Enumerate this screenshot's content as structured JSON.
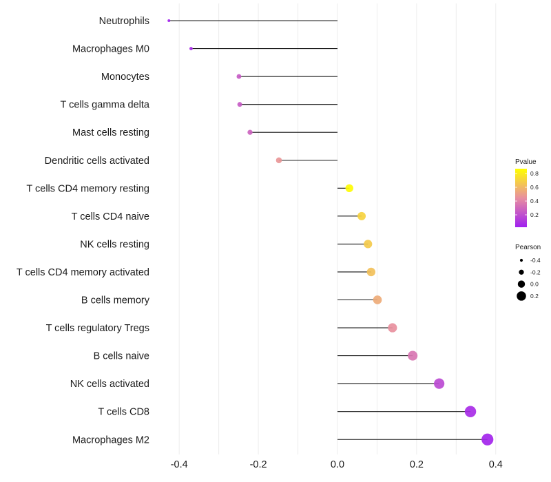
{
  "chart_data": {
    "type": "lollipop",
    "title": "",
    "xlabel": "",
    "ylabel": "",
    "xlim": [
      -0.445,
      0.41
    ],
    "x_ticks": [
      -0.4,
      -0.2,
      0.0,
      0.2,
      0.4
    ],
    "x_tick_labels": [
      "-0.4",
      "-0.2",
      "0.0",
      "0.2",
      "0.4"
    ],
    "grid": true,
    "baseline": 0.0,
    "categories": [
      "Neutrophils",
      "Macrophages M0",
      "Monocytes",
      "T cells gamma delta",
      "Mast cells resting",
      "Dendritic cells activated",
      "T cells CD4 memory resting",
      "T cells CD4 naive",
      "NK cells resting",
      "T cells CD4 memory activated",
      "B cells memory",
      "T cells regulatory  Tregs ",
      "B cells naive",
      "NK cells activated",
      "T cells CD8",
      "Macrophages M2"
    ],
    "pearson": [
      -0.426,
      -0.37,
      -0.249,
      -0.247,
      -0.221,
      -0.148,
      0.03,
      0.061,
      0.077,
      0.085,
      0.101,
      0.139,
      0.19,
      0.257,
      0.336,
      0.379
    ],
    "pvalue": [
      0.03,
      0.07,
      0.25,
      0.25,
      0.28,
      0.47,
      0.86,
      0.7,
      0.67,
      0.63,
      0.55,
      0.45,
      0.35,
      0.18,
      0.07,
      0.04
    ],
    "color_legend": {
      "title": "Pvalue",
      "low_color": "#A020F0",
      "high_color": "#FFFF00",
      "range": [
        0.02,
        0.87
      ],
      "ticks": [
        0.2,
        0.4,
        0.6,
        0.8
      ],
      "tick_labels": [
        "0.2",
        "0.4",
        "0.6",
        "0.8"
      ],
      "placement": "right"
    },
    "size_legend": {
      "title": "Pearson",
      "values": [
        -0.4,
        -0.2,
        0.0,
        0.2
      ],
      "labels": [
        "-0.4",
        "-0.2",
        "0.0",
        "0.2"
      ],
      "placement": "right"
    }
  }
}
